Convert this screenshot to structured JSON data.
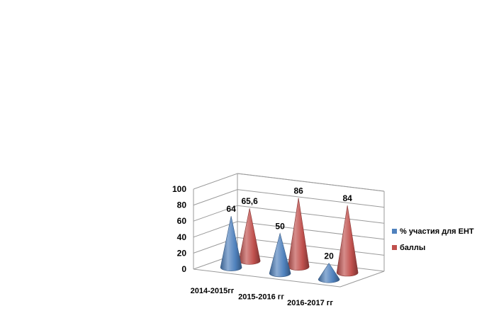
{
  "chart_data": {
    "type": "bar",
    "subtype": "3d-cone",
    "categories": [
      "2014-2015гг",
      "2015-2016 гг",
      "2016-2017 гг"
    ],
    "series": [
      {
        "name": "% участия для ЕНТ",
        "values": [
          64,
          50,
          20
        ],
        "labels": [
          "64",
          "50",
          "20"
        ],
        "color": "#4f81bd"
      },
      {
        "name": "баллы",
        "values": [
          65.6,
          86,
          84
        ],
        "labels": [
          "65,6",
          "86",
          "84"
        ],
        "color": "#c0504d"
      }
    ],
    "y_ticks": [
      "0",
      "20",
      "40",
      "60",
      "80",
      "100"
    ],
    "ylim": [
      0,
      100
    ],
    "grid": true,
    "legend_position": "right"
  }
}
